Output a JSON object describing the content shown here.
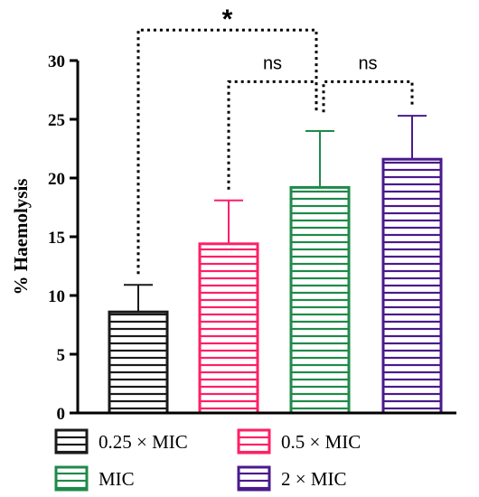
{
  "chart_data": {
    "type": "bar",
    "ylabel": "% Haemolysis",
    "ylim": [
      0,
      30
    ],
    "yticks": [
      0,
      5,
      10,
      15,
      20,
      25,
      30
    ],
    "categories": [
      "0.25 × MIC",
      "0.5 × MIC",
      "MIC",
      "2 × MIC"
    ],
    "values": [
      8.6,
      14.4,
      19.2,
      21.6
    ],
    "error": [
      2.3,
      3.7,
      4.8,
      3.7
    ],
    "colors": [
      "#1a1a1a",
      "#ff1f66",
      "#1e8a4a",
      "#4a1a8c"
    ],
    "significance": [
      {
        "from": 0,
        "to": 2,
        "label": "*",
        "y": 32.6
      },
      {
        "from": 1,
        "to": 2,
        "label": "ns",
        "y": 28.2
      },
      {
        "from": 2,
        "to": 3,
        "label": "ns",
        "y": 28.2
      }
    ],
    "legend": [
      "0.25 × MIC",
      "0.5 × MIC",
      "MIC",
      "2 × MIC"
    ]
  }
}
